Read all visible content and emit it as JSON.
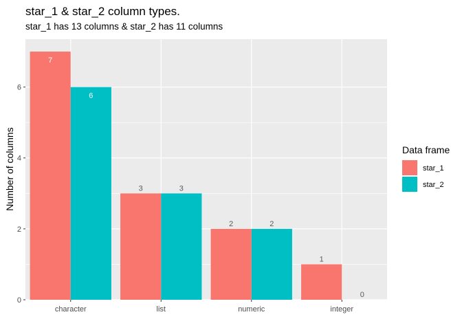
{
  "chart_data": {
    "type": "bar",
    "title": "star_1 & star_2 column types.",
    "subtitle": "star_1 has 13 columns & star_2 has 11 columns",
    "xlabel": "",
    "ylabel": "Number of columns",
    "categories": [
      "character",
      "list",
      "numeric",
      "integer"
    ],
    "series": [
      {
        "name": "star_1",
        "values": [
          7,
          3,
          2,
          1
        ],
        "color": "#F8766D"
      },
      {
        "name": "star_2",
        "values": [
          6,
          3,
          2,
          0
        ],
        "color": "#00BFC4"
      }
    ],
    "ylim": [
      0,
      7.35
    ],
    "yticks": [
      0,
      2,
      4,
      6
    ],
    "data_labels": true,
    "grid": true,
    "legend": {
      "title": "Data frame",
      "position": "right"
    },
    "colors": {
      "panel_background": "#EBEBEB",
      "grid_major": "#FFFFFF",
      "label_inside": "#FFFFFF",
      "label_outside": "#595959"
    }
  }
}
